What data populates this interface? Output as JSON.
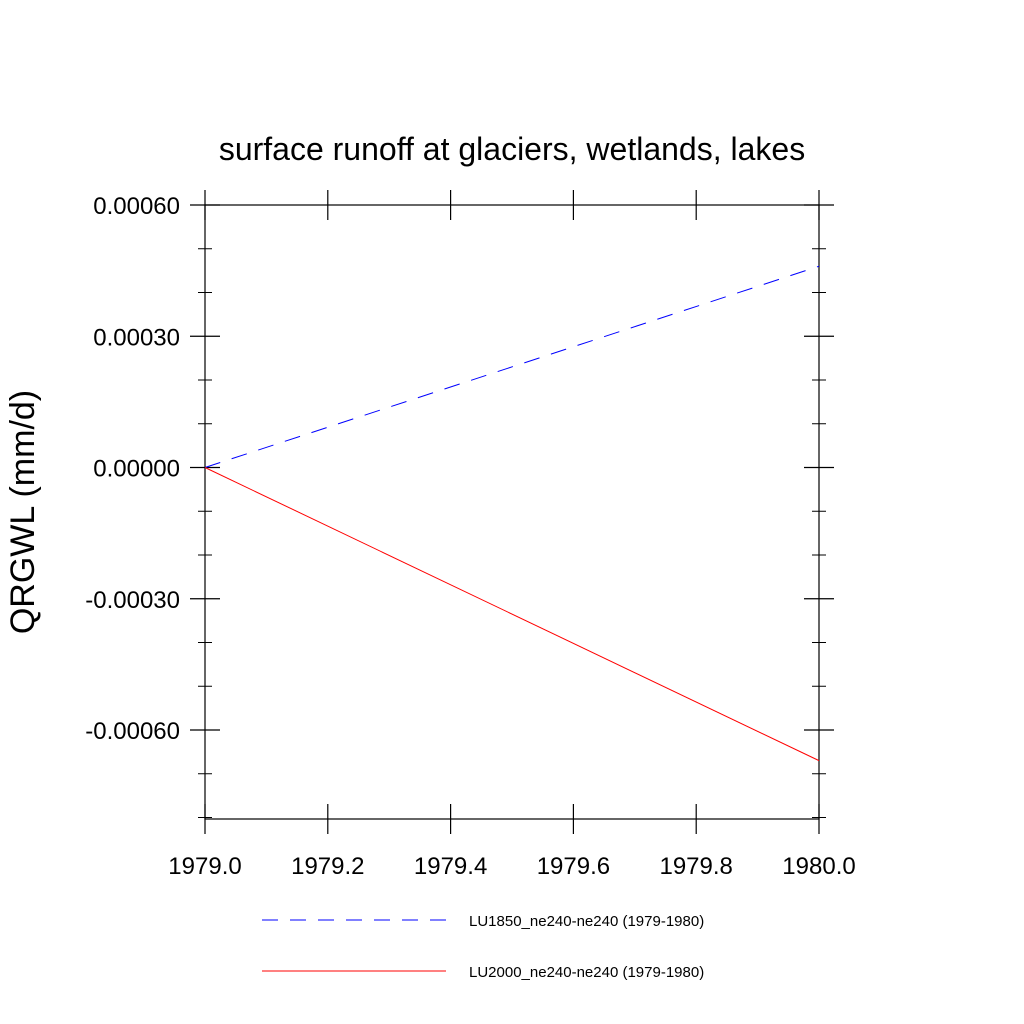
{
  "chart_data": {
    "type": "line",
    "title": "surface runoff at glaciers, wetlands, lakes",
    "ylabel": "QRGWL  (mm/d)",
    "xlabel": "",
    "xlim": [
      1979.0,
      1980.0
    ],
    "ylim": [
      -0.0008,
      0.0006
    ],
    "x_ticks": [
      1979.0,
      1979.2,
      1979.4,
      1979.6,
      1979.8,
      1980.0
    ],
    "x_tick_labels": [
      "1979.0",
      "1979.2",
      "1979.4",
      "1979.6",
      "1979.8",
      "1980.0"
    ],
    "y_ticks": [
      0.0006,
      0.0003,
      0.0,
      -0.0003,
      -0.0006
    ],
    "y_tick_labels": [
      "0.00060",
      "0.00030",
      "0.00000",
      "-0.00030",
      "-0.00060"
    ],
    "grid": false,
    "legend_position": "bottom",
    "series": [
      {
        "name": "LU1850_ne240-ne240 (1979-1980)",
        "color": "#0000ff",
        "style": "dashed",
        "x": [
          1979.0,
          1980.0
        ],
        "y": [
          0.0,
          0.00046
        ]
      },
      {
        "name": "LU2000_ne240-ne240 (1979-1980)",
        "color": "#ff0000",
        "style": "solid",
        "x": [
          1979.0,
          1980.0
        ],
        "y": [
          0.0,
          -0.00067
        ]
      }
    ]
  }
}
